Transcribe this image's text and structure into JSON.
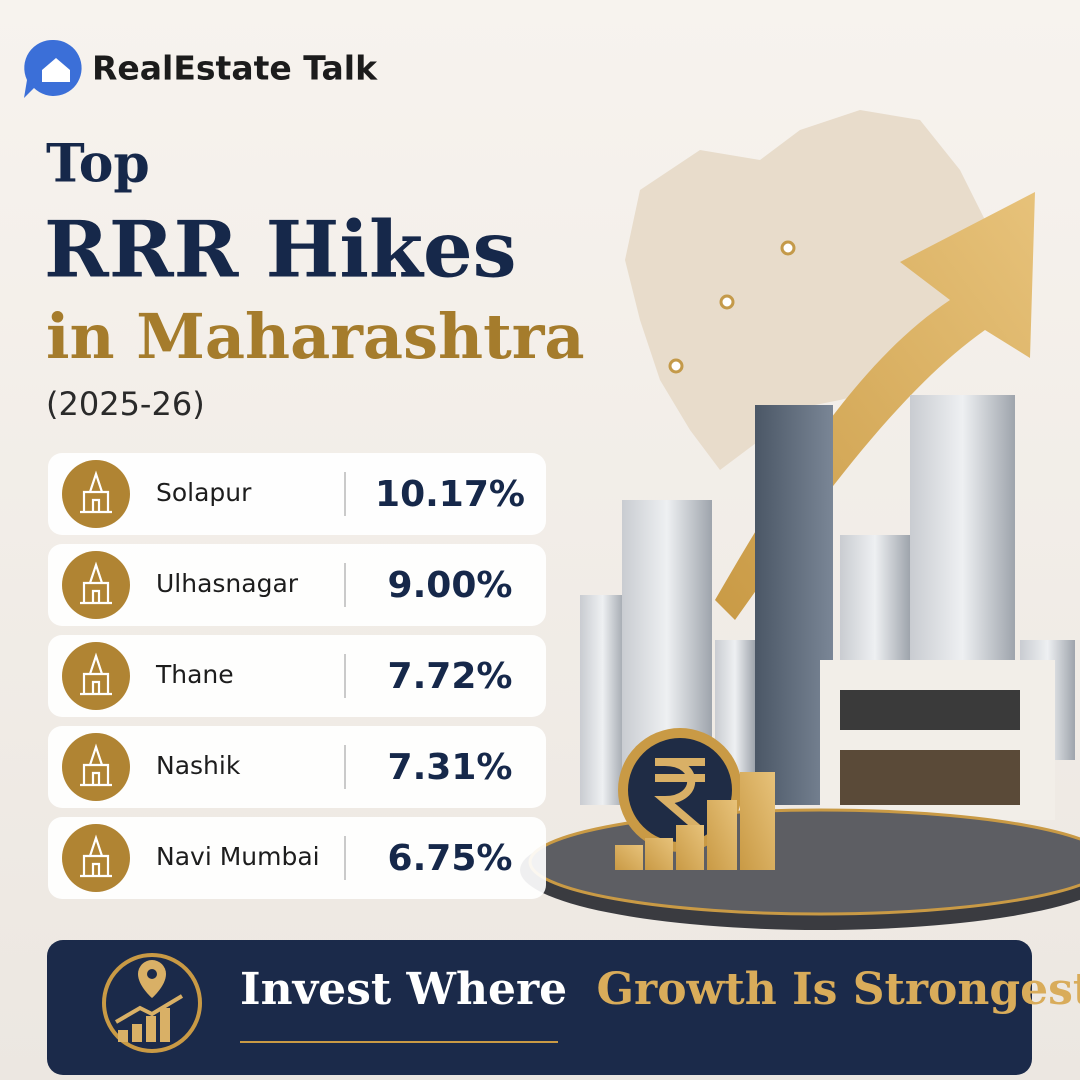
{
  "brand": "RealEstate Talk",
  "title": {
    "line1": "Top",
    "line2": "RRR Hikes",
    "line3": "in Maharashtra",
    "period": "(2025-26)"
  },
  "items": [
    {
      "city": "Solapur",
      "value": "10.17%"
    },
    {
      "city": "Ulhasnagar",
      "value": "9.00%"
    },
    {
      "city": "Thane",
      "value": "7.72%"
    },
    {
      "city": "Nashik",
      "value": "7.31%"
    },
    {
      "city": "Navi Mumbai",
      "value": "6.75%"
    }
  ],
  "footer": {
    "lead": "Invest Where",
    "highlight": "Growth Is Strongest"
  }
}
